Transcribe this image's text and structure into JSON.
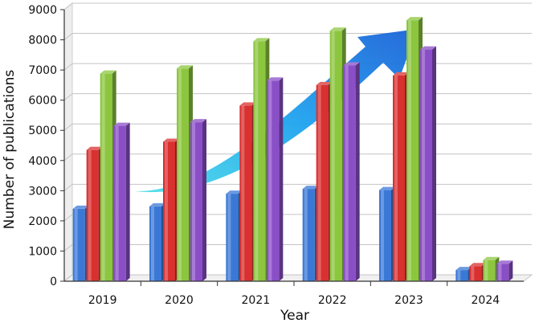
{
  "chart_data": {
    "type": "bar",
    "title": "",
    "xlabel": "Year",
    "ylabel": "Number of publications",
    "categories": [
      "2019",
      "2020",
      "2021",
      "2022",
      "2023",
      "2024"
    ],
    "ylim": [
      0,
      9000
    ],
    "yticks": [
      0,
      1000,
      2000,
      3000,
      4000,
      5000,
      6000,
      7000,
      8000,
      9000
    ],
    "grid": true,
    "legend": "none",
    "series": [
      {
        "color": "#3b78d6",
        "values": [
          2400,
          2480,
          2900,
          3060,
          3020,
          370
        ]
      },
      {
        "color": "#d93030",
        "values": [
          4350,
          4620,
          5820,
          6500,
          6820,
          500
        ]
      },
      {
        "color": "#8cc63f",
        "values": [
          6880,
          7050,
          7950,
          8300,
          8650,
          700
        ]
      },
      {
        "color": "#8a4fc7",
        "values": [
          5150,
          5270,
          6650,
          7150,
          7680,
          580
        ]
      }
    ],
    "annotations": [
      {
        "type": "trend-arrow",
        "direction": "increasing",
        "color": "#2a9be8"
      }
    ]
  }
}
